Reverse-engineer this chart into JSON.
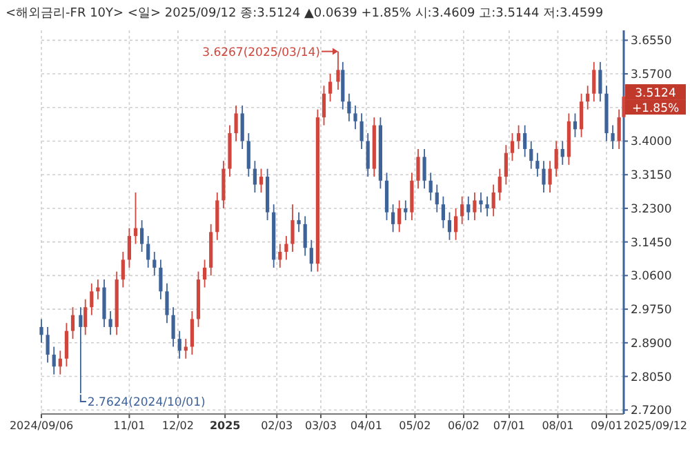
{
  "chart_data": {
    "type": "candlestick",
    "title": "<해외금리-FR 10Y> <일> 2025/09/12 종:3.5124 ▲0.0639 +1.85% 시:3.4609 고:3.5144 저:3.4599",
    "colors": [
      "#3e6399",
      "#3e6399",
      "#3e6399",
      "#d0453c",
      "#d0453c",
      "#d0453c",
      "#3e6399",
      "#d0453c",
      "#d0453c",
      "#d0453c",
      "#3e6399",
      "#3e6399",
      "#d0453c",
      "#d0453c",
      "#d0453c",
      "#d0453c",
      "#3e6399",
      "#3e6399",
      "#3e6399",
      "#3e6399",
      "#3e6399",
      "#3e6399",
      "#3e6399",
      "#d0453c",
      "#d0453c",
      "#d0453c",
      "#d0453c",
      "#d0453c",
      "#d0453c",
      "#d0453c",
      "#d0453c",
      "#d0453c",
      "#3e6399",
      "#3e6399",
      "#3e6399",
      "#d0453c",
      "#3e6399",
      "#3e6399",
      "#d0453c",
      "#d0453c",
      "#d0453c",
      "#3e6399",
      "#3e6399",
      "#3e6399",
      "#d0453c",
      "#d0453c",
      "#d0453c",
      "#d0453c",
      "#3e6399",
      "#3e6399",
      "#3e6399",
      "#3e6399",
      "#3e6399",
      "#d0453c",
      "#3e6399",
      "#3e6399",
      "#3e6399",
      "#d0453c",
      "#3e6399",
      "#d0453c",
      "#d0453c",
      "#3e6399",
      "#3e6399",
      "#3e6399",
      "#3e6399",
      "#3e6399",
      "#d0453c",
      "#d0453c",
      "#3e6399",
      "#d0453c",
      "#3e6399",
      "#3e6399",
      "#d0453c",
      "#d0453c",
      "#d0453c",
      "#d0453c",
      "#d0453c",
      "#3e6399",
      "#3e6399",
      "#3e6399",
      "#3e6399",
      "#d0453c",
      "#d0453c",
      "#3e6399",
      "#d0453c",
      "#3e6399",
      "#d0453c",
      "#d0453c",
      "#d0453c",
      "#3e6399",
      "#3e6399",
      "#3e6399",
      "#d0453c",
      "#d0453c"
    ],
    "grid": true,
    "xlim": [
      "2024-09-06",
      "2025-09-12"
    ],
    "xticks": [
      {
        "value": "2024-09-06",
        "label": "2024/09/06"
      },
      {
        "value": "2024-11-01",
        "label": "11/01"
      },
      {
        "value": "2024-12-02",
        "label": "12/02"
      },
      {
        "value": "2025-01-01",
        "label": "2025"
      },
      {
        "value": "2025-02-03",
        "label": "02/03"
      },
      {
        "value": "2025-03-03",
        "label": "03/03"
      },
      {
        "value": "2025-04-01",
        "label": "04/01"
      },
      {
        "value": "2025-05-02",
        "label": "05/02"
      },
      {
        "value": "2025-06-02",
        "label": "06/02"
      },
      {
        "value": "2025-07-01",
        "label": "07/01"
      },
      {
        "value": "2025-08-01",
        "label": "08/01"
      },
      {
        "value": "2025-09-01",
        "label": "09/01"
      }
    ],
    "ylim": [
      2.71,
      3.68
    ],
    "yticks": [
      {
        "value": 2.72,
        "label": "2.7200"
      },
      {
        "value": 2.805,
        "label": "2.8050"
      },
      {
        "value": 2.89,
        "label": "2.8900"
      },
      {
        "value": 2.975,
        "label": "2.9750"
      },
      {
        "value": 3.06,
        "label": "3.0600"
      },
      {
        "value": 3.145,
        "label": "3.1450"
      },
      {
        "value": 3.23,
        "label": "3.2300"
      },
      {
        "value": 3.315,
        "label": "3.3150"
      },
      {
        "value": 3.4,
        "label": "3.4000"
      },
      {
        "value": 3.485,
        "label": null
      },
      {
        "value": 3.57,
        "label": "3.5700"
      },
      {
        "value": 3.655,
        "label": "3.6550"
      }
    ],
    "annotations": [
      "2025/09/12",
      {
        "text": "3.6267(2025/03/14)",
        "x": "2025-03-14",
        "y": 3.6267
      },
      {
        "text": "2.7624(2024/10/01)",
        "x": "2024-10-01",
        "y": 2.7624
      },
      {
        "text": "3.5124",
        "x": "2025-09-12",
        "y": 3.5124
      },
      {
        "text": "+1.85%",
        "x": "2025-09-12",
        "y": 3.5124
      }
    ],
    "x": [
      "2024-09-06",
      "2024-09-10",
      "2024-09-14",
      "2024-09-18",
      "2024-09-22",
      "2024-09-26",
      "2024-10-01",
      "2024-10-04",
      "2024-10-08",
      "2024-10-12",
      "2024-10-16",
      "2024-10-20",
      "2024-10-24",
      "2024-10-28",
      "2024-11-01",
      "2024-11-05",
      "2024-11-09",
      "2024-11-13",
      "2024-11-17",
      "2024-11-21",
      "2024-11-25",
      "2024-11-29",
      "2024-12-03",
      "2024-12-07",
      "2024-12-11",
      "2024-12-15",
      "2024-12-19",
      "2024-12-23",
      "2024-12-27",
      "2024-12-31",
      "2025-01-04",
      "2025-01-08",
      "2025-01-12",
      "2025-01-16",
      "2025-01-20",
      "2025-01-24",
      "2025-01-28",
      "2025-02-01",
      "2025-02-05",
      "2025-02-09",
      "2025-02-13",
      "2025-02-17",
      "2025-02-21",
      "2025-02-25",
      "2025-03-01",
      "2025-03-05",
      "2025-03-09",
      "2025-03-14",
      "2025-03-17",
      "2025-03-21",
      "2025-03-25",
      "2025-03-29",
      "2025-04-02",
      "2025-04-06",
      "2025-04-10",
      "2025-04-14",
      "2025-04-18",
      "2025-04-22",
      "2025-04-26",
      "2025-04-30",
      "2025-05-04",
      "2025-05-08",
      "2025-05-12",
      "2025-05-16",
      "2025-05-20",
      "2025-05-24",
      "2025-05-28",
      "2025-06-01",
      "2025-06-05",
      "2025-06-09",
      "2025-06-13",
      "2025-06-17",
      "2025-06-21",
      "2025-06-25",
      "2025-06-29",
      "2025-07-03",
      "2025-07-07",
      "2025-07-11",
      "2025-07-15",
      "2025-07-19",
      "2025-07-23",
      "2025-07-27",
      "2025-07-31",
      "2025-08-04",
      "2025-08-08",
      "2025-08-12",
      "2025-08-16",
      "2025-08-20",
      "2025-08-24",
      "2025-08-28",
      "2025-09-01",
      "2025-09-05",
      "2025-09-09",
      "2025-09-12"
    ],
    "ohlc": [
      [
        2.93,
        2.95,
        2.89,
        2.91
      ],
      [
        2.91,
        2.93,
        2.84,
        2.86
      ],
      [
        2.86,
        2.88,
        2.81,
        2.83
      ],
      [
        2.83,
        2.87,
        2.81,
        2.85
      ],
      [
        2.85,
        2.94,
        2.83,
        2.92
      ],
      [
        2.92,
        2.98,
        2.9,
        2.96
      ],
      [
        2.96,
        2.98,
        2.7624,
        2.93
      ],
      [
        2.93,
        3.0,
        2.91,
        2.98
      ],
      [
        2.98,
        3.04,
        2.96,
        3.02
      ],
      [
        3.02,
        3.05,
        3.0,
        3.03
      ],
      [
        3.03,
        3.05,
        2.93,
        2.95
      ],
      [
        2.95,
        2.97,
        2.91,
        2.93
      ],
      [
        2.93,
        3.07,
        2.91,
        3.05
      ],
      [
        3.05,
        3.12,
        3.03,
        3.1
      ],
      [
        3.1,
        3.18,
        3.08,
        3.16
      ],
      [
        3.16,
        3.27,
        3.14,
        3.18
      ],
      [
        3.18,
        3.2,
        3.12,
        3.14
      ],
      [
        3.14,
        3.16,
        3.08,
        3.1
      ],
      [
        3.1,
        3.12,
        3.06,
        3.08
      ],
      [
        3.08,
        3.1,
        3.0,
        3.02
      ],
      [
        3.02,
        3.04,
        2.94,
        2.96
      ],
      [
        2.96,
        2.98,
        2.88,
        2.9
      ],
      [
        2.9,
        2.92,
        2.85,
        2.87
      ],
      [
        2.87,
        2.9,
        2.85,
        2.88
      ],
      [
        2.88,
        2.97,
        2.86,
        2.95
      ],
      [
        2.95,
        3.07,
        2.93,
        3.05
      ],
      [
        3.05,
        3.1,
        3.03,
        3.08
      ],
      [
        3.08,
        3.19,
        3.06,
        3.17
      ],
      [
        3.17,
        3.27,
        3.15,
        3.25
      ],
      [
        3.25,
        3.35,
        3.23,
        3.33
      ],
      [
        3.33,
        3.44,
        3.31,
        3.42
      ],
      [
        3.42,
        3.49,
        3.4,
        3.47
      ],
      [
        3.47,
        3.49,
        3.38,
        3.4
      ],
      [
        3.4,
        3.42,
        3.31,
        3.33
      ],
      [
        3.33,
        3.35,
        3.27,
        3.29
      ],
      [
        3.29,
        3.33,
        3.27,
        3.31
      ],
      [
        3.31,
        3.33,
        3.2,
        3.22
      ],
      [
        3.22,
        3.24,
        3.08,
        3.1
      ],
      [
        3.1,
        3.14,
        3.08,
        3.12
      ],
      [
        3.12,
        3.16,
        3.1,
        3.14
      ],
      [
        3.14,
        3.24,
        3.12,
        3.2
      ],
      [
        3.2,
        3.22,
        3.17,
        3.19
      ],
      [
        3.19,
        3.21,
        3.11,
        3.13
      ],
      [
        3.13,
        3.15,
        3.07,
        3.09
      ],
      [
        3.09,
        3.48,
        3.07,
        3.46
      ],
      [
        3.46,
        3.54,
        3.44,
        3.52
      ],
      [
        3.52,
        3.57,
        3.5,
        3.55
      ],
      [
        3.55,
        3.6267,
        3.53,
        3.58
      ],
      [
        3.58,
        3.6,
        3.48,
        3.5
      ],
      [
        3.5,
        3.52,
        3.45,
        3.47
      ],
      [
        3.47,
        3.49,
        3.43,
        3.45
      ],
      [
        3.45,
        3.47,
        3.38,
        3.4
      ],
      [
        3.4,
        3.42,
        3.31,
        3.33
      ],
      [
        3.33,
        3.46,
        3.31,
        3.44
      ],
      [
        3.44,
        3.46,
        3.28,
        3.3
      ],
      [
        3.3,
        3.32,
        3.2,
        3.22
      ],
      [
        3.22,
        3.24,
        3.17,
        3.19
      ],
      [
        3.19,
        3.25,
        3.17,
        3.23
      ],
      [
        3.23,
        3.25,
        3.2,
        3.22
      ],
      [
        3.22,
        3.32,
        3.2,
        3.3
      ],
      [
        3.3,
        3.38,
        3.28,
        3.36
      ],
      [
        3.36,
        3.38,
        3.28,
        3.3
      ],
      [
        3.3,
        3.32,
        3.25,
        3.27
      ],
      [
        3.27,
        3.29,
        3.22,
        3.24
      ],
      [
        3.24,
        3.26,
        3.18,
        3.2
      ],
      [
        3.2,
        3.22,
        3.15,
        3.17
      ],
      [
        3.17,
        3.23,
        3.15,
        3.21
      ],
      [
        3.21,
        3.26,
        3.19,
        3.24
      ],
      [
        3.24,
        3.26,
        3.2,
        3.22
      ],
      [
        3.22,
        3.27,
        3.2,
        3.25
      ],
      [
        3.25,
        3.27,
        3.22,
        3.24
      ],
      [
        3.24,
        3.26,
        3.21,
        3.23
      ],
      [
        3.23,
        3.29,
        3.21,
        3.27
      ],
      [
        3.27,
        3.33,
        3.25,
        3.31
      ],
      [
        3.31,
        3.39,
        3.29,
        3.37
      ],
      [
        3.37,
        3.42,
        3.35,
        3.4
      ],
      [
        3.4,
        3.44,
        3.38,
        3.42
      ],
      [
        3.42,
        3.44,
        3.36,
        3.38
      ],
      [
        3.38,
        3.4,
        3.33,
        3.35
      ],
      [
        3.35,
        3.37,
        3.31,
        3.33
      ],
      [
        3.33,
        3.35,
        3.27,
        3.29
      ],
      [
        3.29,
        3.35,
        3.27,
        3.33
      ],
      [
        3.33,
        3.4,
        3.31,
        3.38
      ],
      [
        3.38,
        3.4,
        3.34,
        3.36
      ],
      [
        3.36,
        3.47,
        3.34,
        3.45
      ],
      [
        3.45,
        3.47,
        3.41,
        3.43
      ],
      [
        3.43,
        3.52,
        3.41,
        3.5
      ],
      [
        3.5,
        3.54,
        3.48,
        3.52
      ],
      [
        3.52,
        3.6,
        3.5,
        3.58
      ],
      [
        3.58,
        3.6,
        3.5,
        3.52
      ],
      [
        3.52,
        3.54,
        3.4,
        3.42
      ],
      [
        3.42,
        3.44,
        3.38,
        3.4
      ],
      [
        3.4,
        3.48,
        3.38,
        3.46
      ],
      [
        3.4609,
        3.5144,
        3.4599,
        3.5124
      ]
    ]
  }
}
